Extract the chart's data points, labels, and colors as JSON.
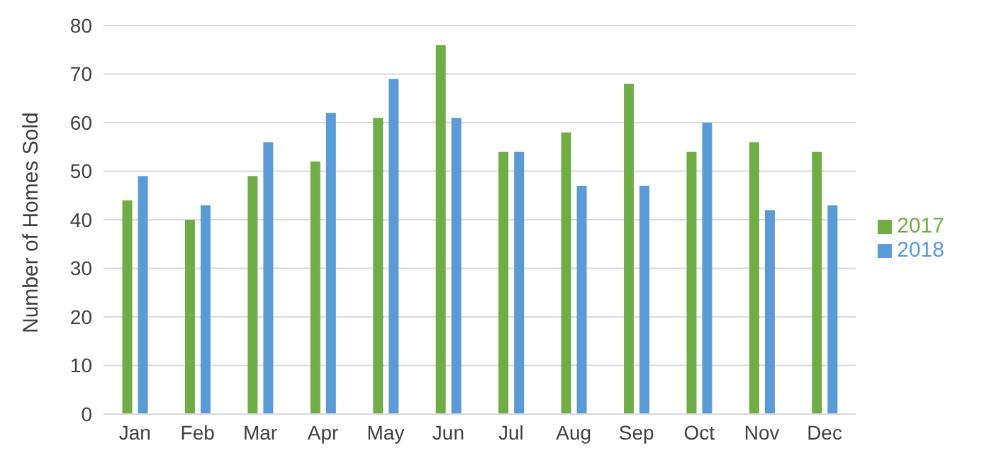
{
  "chart_data": {
    "type": "bar",
    "ylabel": "Number of Homes Sold",
    "categories": [
      "Jan",
      "Feb",
      "Mar",
      "Apr",
      "May",
      "Jun",
      "Jul",
      "Aug",
      "Sep",
      "Oct",
      "Nov",
      "Dec"
    ],
    "series": [
      {
        "name": "2017",
        "color": "#70ad47",
        "values": [
          44,
          40,
          49,
          52,
          61,
          76,
          54,
          58,
          68,
          54,
          56,
          54
        ]
      },
      {
        "name": "2018",
        "color": "#5b9bd5",
        "values": [
          49,
          43,
          56,
          62,
          69,
          61,
          54,
          47,
          47,
          60,
          42,
          43
        ]
      }
    ],
    "ylim": [
      0,
      80
    ],
    "yticks": [
      0,
      10,
      20,
      30,
      40,
      50,
      60,
      70,
      80
    ],
    "grid": "y",
    "legend": "right"
  }
}
